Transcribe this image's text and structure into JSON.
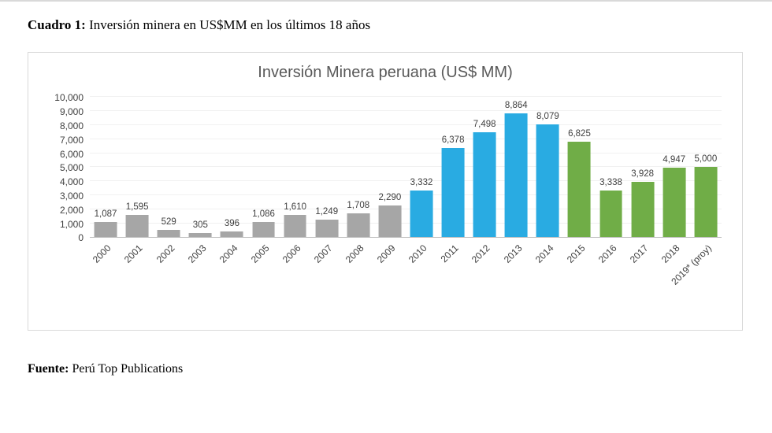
{
  "page": {
    "heading_bold": "Cuadro 1:",
    "heading_rest": " Inversión minera en US$MM en los últimos 18 años",
    "source_bold": "Fuente:",
    "source_rest": " Perú Top Publications"
  },
  "chart_data": {
    "type": "bar",
    "title": "Inversión Minera peruana (US$ MM)",
    "categories": [
      "2000",
      "2001",
      "2002",
      "2003",
      "2004",
      "2005",
      "2006",
      "2007",
      "2008",
      "2009",
      "2010",
      "2011",
      "2012",
      "2013",
      "2014",
      "2015",
      "2016",
      "2017",
      "2018",
      "2019* (proy)"
    ],
    "values": [
      1087,
      1595,
      529,
      305,
      396,
      1086,
      1610,
      1249,
      1708,
      2290,
      3332,
      6378,
      7498,
      8864,
      8079,
      6825,
      3338,
      3928,
      4947,
      5000
    ],
    "labels": [
      "1,087",
      "1,595",
      "529",
      "305",
      "396",
      "1,086",
      "1,610",
      "1,249",
      "1,708",
      "2,290",
      "3,332",
      "6,378",
      "7,498",
      "8,864",
      "8,079",
      "6,825",
      "3,338",
      "3,928",
      "4,947",
      "5,000"
    ],
    "color_groups": [
      "gray",
      "gray",
      "gray",
      "gray",
      "gray",
      "gray",
      "gray",
      "gray",
      "gray",
      "gray",
      "blue",
      "blue",
      "blue",
      "blue",
      "blue",
      "green",
      "green",
      "green",
      "green",
      "green"
    ],
    "group_colors": {
      "gray": "#A6A6A6",
      "blue": "#29ABE2",
      "green": "#70AD47"
    },
    "ylim": [
      0,
      10000
    ],
    "ytick_step": 1000,
    "yticks": [
      "0",
      "1,000",
      "2,000",
      "3,000",
      "4,000",
      "5,000",
      "6,000",
      "7,000",
      "8,000",
      "9,000",
      "10,000"
    ],
    "xlabel": "",
    "ylabel": "",
    "grid": true,
    "legend": "none",
    "title_color": "#595959",
    "label_color": "#404040"
  }
}
